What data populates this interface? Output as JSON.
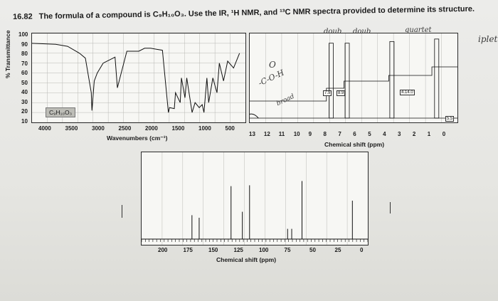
{
  "problem": {
    "number": "16.82",
    "text": "The formula of a compound is C₉H₁₀O₃. Use the IR, ¹H NMR, and ¹³C NMR spectra provided to determine its structure."
  },
  "ir": {
    "ylabel": "% Transmittance",
    "xlabel": "Wavenumbers (cm⁻¹)",
    "formula": "C₉H₁₀O₃",
    "yticks": [
      "100",
      "90",
      "80",
      "70",
      "60",
      "50",
      "40",
      "30",
      "20",
      "10"
    ],
    "xticks": [
      "4000",
      "3500",
      "3000",
      "2500",
      "2000",
      "1500",
      "1000",
      "500"
    ]
  },
  "hnmr": {
    "xlabel": "Chemical shift (ppm)",
    "xticks": [
      "13",
      "12",
      "11",
      "10",
      "9",
      "8",
      "7",
      "6",
      "5",
      "4",
      "3",
      "2",
      "1",
      "0"
    ],
    "integrations": [
      "7.9",
      "8.9",
      "4.14.0",
      "5.5"
    ]
  },
  "cnmr": {
    "xlabel": "Chemical shift (ppm)",
    "xticks": [
      "200",
      "175",
      "150",
      "125",
      "100",
      "75",
      "50",
      "25",
      "0"
    ]
  },
  "handwriting": {
    "doub1": "doub",
    "doub2": "doub",
    "quartet": "quartet",
    "triplet": "iplet",
    "acid": "-C-O-H",
    "broad": "broad"
  },
  "chart_data": [
    {
      "type": "line",
      "title": "",
      "xlabel": "Wavenumbers (cm⁻¹)",
      "ylabel": "% Transmittance",
      "xlim": [
        4000,
        400
      ],
      "ylim": [
        10,
        100
      ],
      "series": [
        {
          "x": [
            4000,
            3600,
            3400,
            3200,
            3100,
            3000,
            2990,
            2950,
            2900,
            2800,
            2600,
            2560,
            2400,
            2200,
            2100,
            2000,
            1900,
            1800,
            1700,
            1680,
            1600,
            1580,
            1500,
            1480,
            1420,
            1390,
            1300,
            1250,
            1180,
            1130,
            1100,
            1050,
            1020,
            950,
            880,
            840,
            770,
            700,
            600,
            500
          ],
          "y": [
            90,
            89,
            87,
            80,
            75,
            40,
            22,
            52,
            60,
            70,
            76,
            45,
            82,
            82,
            85,
            85,
            84,
            83,
            20,
            25,
            24,
            40,
            30,
            55,
            35,
            55,
            20,
            30,
            25,
            28,
            20,
            55,
            30,
            55,
            40,
            70,
            52,
            72,
            65,
            80
          ]
        }
      ]
    },
    {
      "type": "line",
      "title": "",
      "xlabel": "Chemical shift (ppm)",
      "xlim": [
        13,
        0
      ],
      "peaks": [
        {
          "shift": 12.9,
          "label": "",
          "integration": "",
          "width": "broad"
        },
        {
          "shift": 7.9,
          "integration": "7.9",
          "multiplicity": "doub"
        },
        {
          "shift": 6.9,
          "integration": "8.9",
          "multiplicity": "doub"
        },
        {
          "shift": 4.1,
          "integration": "4.14.0",
          "multiplicity": "quartet"
        },
        {
          "shift": 1.3,
          "integration": "5.5",
          "multiplicity": "iplet"
        }
      ]
    },
    {
      "type": "bar",
      "title": "",
      "xlabel": "Chemical shift (ppm)",
      "xlim": [
        220,
        0
      ],
      "peaks_ppm": [
        171,
        164,
        133,
        122,
        115,
        64,
        15
      ],
      "peak_heights": [
        0.28,
        0.25,
        0.62,
        0.32,
        0.63,
        0.68,
        0.45
      ]
    }
  ]
}
